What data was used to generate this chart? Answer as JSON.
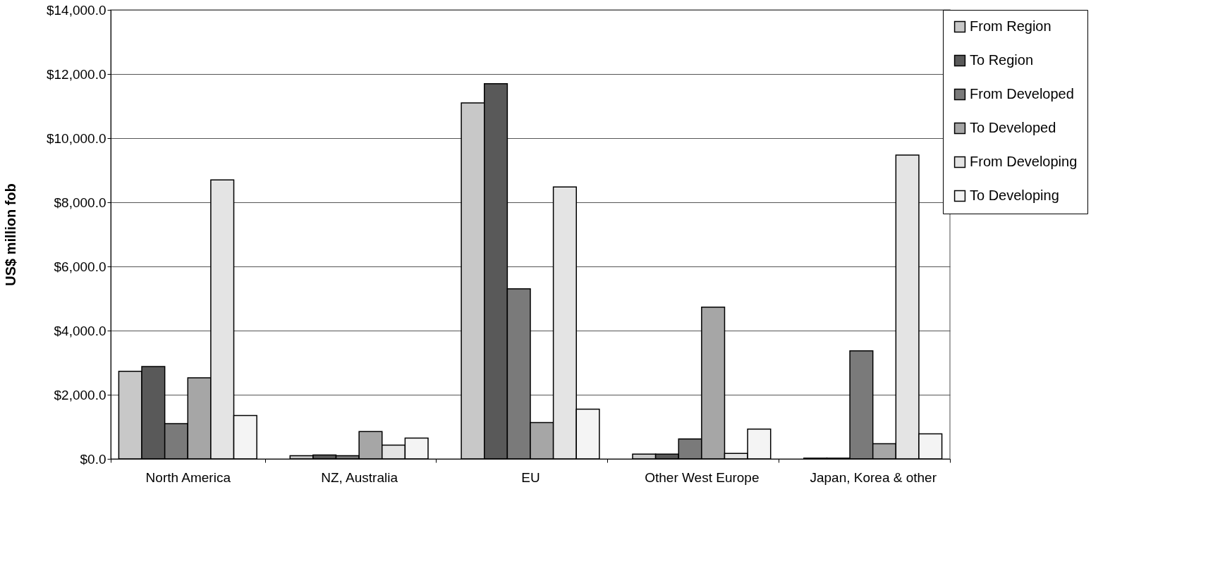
{
  "chart_data": {
    "type": "bar",
    "ylabel": "US$ million fob",
    "categories": [
      "North America",
      "NZ, Australia",
      "EU",
      "Other West Europe",
      "Japan, Korea & other"
    ],
    "series": [
      {
        "name": "From Region",
        "color": "#c8c8c8",
        "values": [
          2730,
          100,
          11100,
          150,
          20
        ]
      },
      {
        "name": "To Region",
        "color": "#595959",
        "values": [
          2880,
          120,
          11700,
          150,
          20
        ]
      },
      {
        "name": "From Developed",
        "color": "#7a7a7a",
        "values": [
          1100,
          100,
          5300,
          620,
          3370
        ]
      },
      {
        "name": "To Developed",
        "color": "#a6a6a6",
        "values": [
          2530,
          850,
          1130,
          4730,
          470
        ]
      },
      {
        "name": "From Developing",
        "color": "#e4e4e4",
        "values": [
          8700,
          430,
          8480,
          170,
          9470
        ]
      },
      {
        "name": "To Developing",
        "color": "#f4f4f4",
        "values": [
          1350,
          650,
          1550,
          930,
          780
        ]
      }
    ],
    "ylim": [
      0,
      14000
    ],
    "yticks": [
      {
        "value": 0,
        "label": "$0.0"
      },
      {
        "value": 2000,
        "label": "$2,000.0"
      },
      {
        "value": 4000,
        "label": "$4,000.0"
      },
      {
        "value": 6000,
        "label": "$6,000.0"
      },
      {
        "value": 8000,
        "label": "$8,000.0"
      },
      {
        "value": 10000,
        "label": "$10,000.0"
      },
      {
        "value": 12000,
        "label": "$12,000.0"
      },
      {
        "value": 14000,
        "label": "$14,000.0"
      }
    ],
    "grid": "y",
    "legend": "right"
  }
}
